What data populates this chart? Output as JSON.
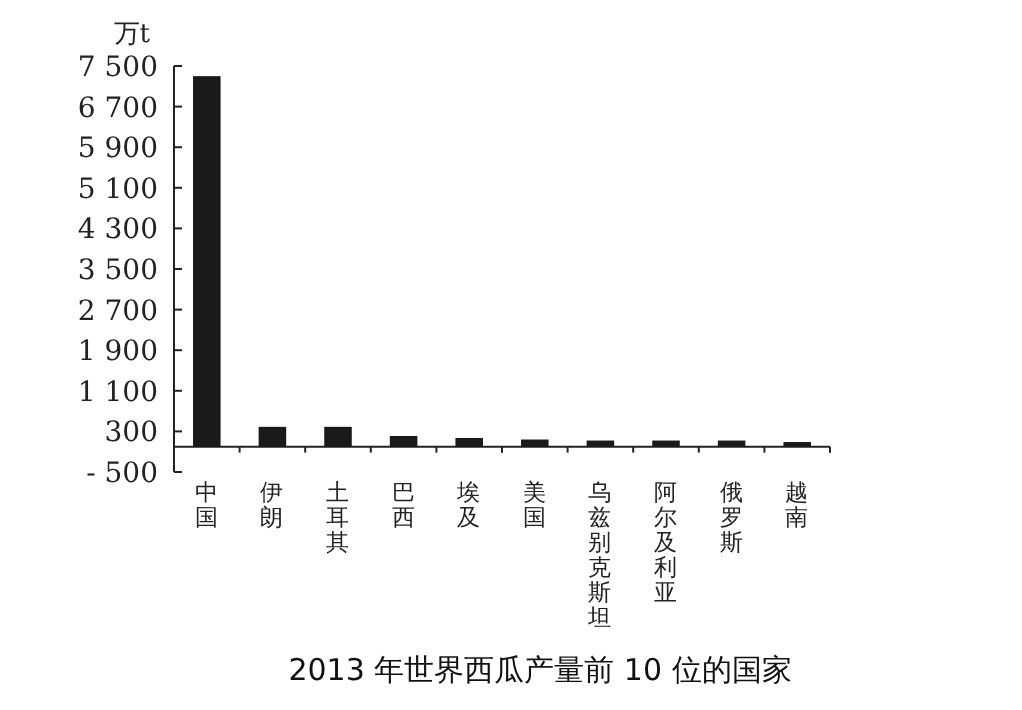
{
  "chart_data": {
    "type": "bar",
    "title": "2013 年世界西瓜产量前 10 位的国家",
    "ylabel": "万t",
    "categories": [
      "中国",
      "伊朗",
      "土耳其",
      "巴西",
      "埃及",
      "美国",
      "乌兹别克斯坦",
      "阿尔及利亚",
      "俄罗斯",
      "越南"
    ],
    "values": [
      7300,
      390,
      390,
      210,
      170,
      140,
      120,
      120,
      120,
      90
    ],
    "color": "#1a1a1a",
    "ylim": [
      -500,
      7500
    ],
    "yticks": [
      {
        "value": -500,
        "label": "- 500"
      },
      300,
      {
        "value": 1100,
        "label": "1 100"
      },
      {
        "value": 1900,
        "label": "1 900"
      },
      {
        "value": 2700,
        "label": "2 700"
      },
      {
        "value": 3500,
        "label": "3 500"
      },
      {
        "value": 4300,
        "label": "4 300"
      },
      {
        "value": 5100,
        "label": "5 100"
      },
      {
        "value": 5900,
        "label": "5 900"
      },
      {
        "value": 6700,
        "label": "6 700"
      },
      {
        "value": 7500,
        "label": "7 500"
      }
    ],
    "grid": false
  }
}
